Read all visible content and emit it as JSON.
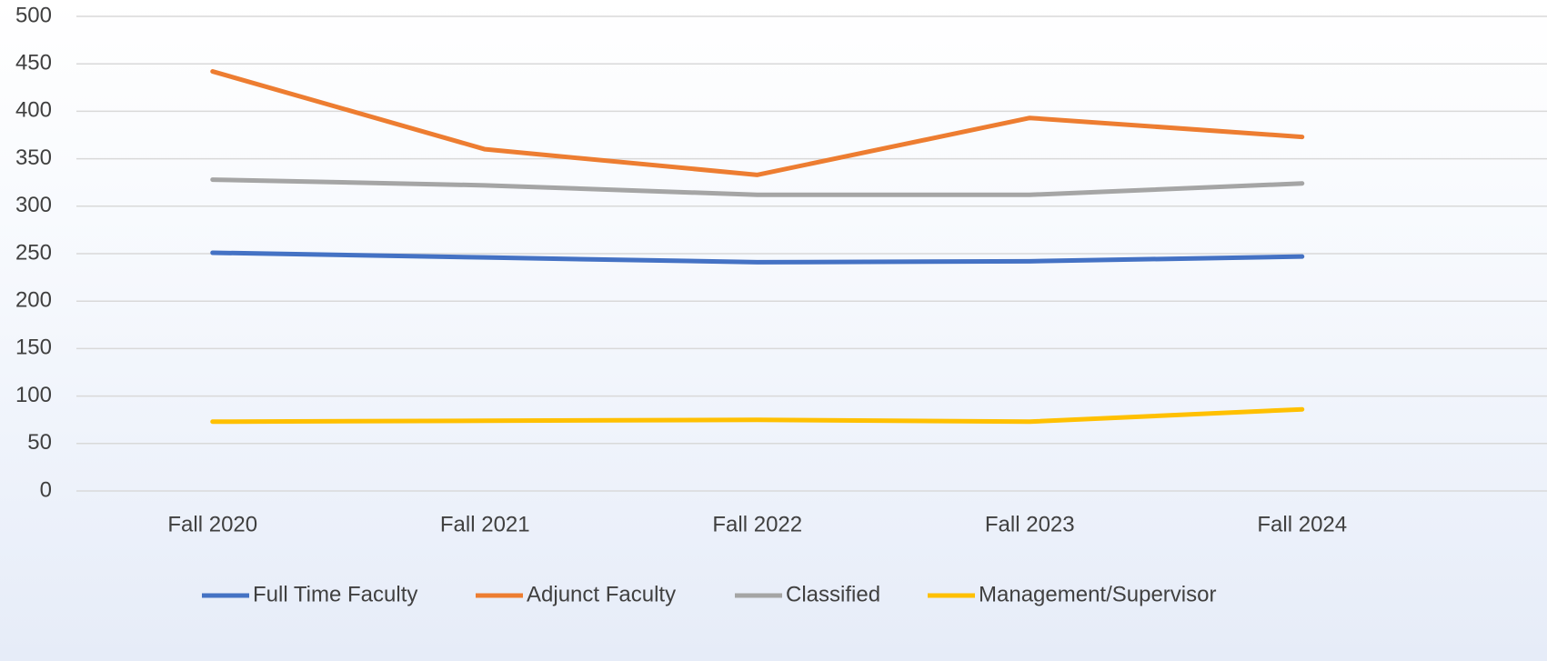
{
  "chart_data": {
    "type": "line",
    "categories": [
      "Fall 2020",
      "Fall 2021",
      "Fall 2022",
      "Fall 2023",
      "Fall 2024"
    ],
    "series": [
      {
        "name": "Full Time Faculty",
        "color": "#4472c4",
        "values": [
          251,
          246,
          241,
          242,
          247
        ]
      },
      {
        "name": "Adjunct Faculty",
        "color": "#ed7d31",
        "values": [
          442,
          360,
          333,
          393,
          373
        ]
      },
      {
        "name": "Classified",
        "color": "#a5a5a5",
        "values": [
          328,
          322,
          312,
          312,
          324
        ]
      },
      {
        "name": "Management/Supervisor",
        "color": "#ffc000",
        "values": [
          73,
          74,
          75,
          73,
          86
        ]
      }
    ],
    "ylim": [
      0,
      500
    ],
    "yticks": [
      0,
      50,
      100,
      150,
      200,
      250,
      300,
      350,
      400,
      450,
      500
    ],
    "grid": true,
    "legend": "bottom"
  }
}
